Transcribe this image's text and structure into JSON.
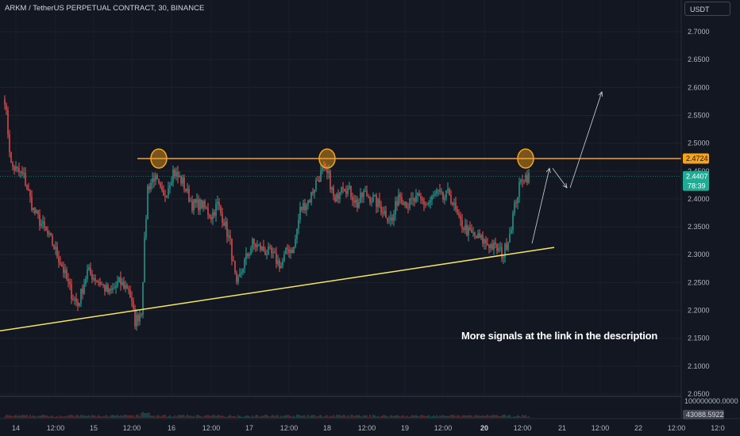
{
  "header": {
    "title": "ARKM / TetherUS PERPETUAL CONTRACT, 30, BINANCE",
    "currency": "USDT"
  },
  "annotation": "More signals at the link in the description",
  "colors": {
    "background": "#131722",
    "up": "#26a69a",
    "down": "#ef5350",
    "resistance": "#f7a21b",
    "support": "#f5e663",
    "current_price_tag": "#22ab94"
  },
  "chart_data": {
    "type": "candlestick",
    "symbol": "ARKM / TetherUS PERPETUAL CONTRACT",
    "interval": "30",
    "exchange": "BINANCE",
    "x_tick_labels": [
      "14",
      "12:00",
      "15",
      "12:00",
      "16",
      "12:00",
      "17",
      "12:00",
      "18",
      "12:00",
      "19",
      "12:00",
      "20",
      "12:00",
      "21",
      "12:00",
      "22",
      "12:00",
      "12:0"
    ],
    "y_tick_labels": [
      "2.7000",
      "2.6500",
      "2.6000",
      "2.5500",
      "2.5000",
      "2.4500",
      "2.4000",
      "2.3500",
      "2.3000",
      "2.2500",
      "2.2000",
      "2.1500",
      "2.1000",
      "2.0500"
    ],
    "ylim": [
      2.05,
      2.72
    ],
    "resistance_level": "2.4724",
    "current_price": "2.4407",
    "countdown": "78:39",
    "volume_axis_label": "100000000.0000",
    "volume_last": "43088.5922",
    "bars_per_day": 48,
    "first_bar_time": "2023-09-13T19:00",
    "close_path": [
      [
        0,
        2.58
      ],
      [
        4,
        2.46
      ],
      [
        12,
        2.44
      ],
      [
        18,
        2.38
      ],
      [
        24,
        2.35
      ],
      [
        30,
        2.32
      ],
      [
        36,
        2.28
      ],
      [
        42,
        2.23
      ],
      [
        46,
        2.21
      ],
      [
        52,
        2.27
      ],
      [
        60,
        2.25
      ],
      [
        66,
        2.23
      ],
      [
        72,
        2.25
      ],
      [
        78,
        2.24
      ],
      [
        82,
        2.18
      ],
      [
        86,
        2.2
      ],
      [
        88,
        2.32
      ],
      [
        90,
        2.42
      ],
      [
        94,
        2.44
      ],
      [
        100,
        2.4
      ],
      [
        106,
        2.45
      ],
      [
        112,
        2.43
      ],
      [
        118,
        2.39
      ],
      [
        124,
        2.39
      ],
      [
        130,
        2.37
      ],
      [
        134,
        2.39
      ],
      [
        138,
        2.36
      ],
      [
        142,
        2.32
      ],
      [
        146,
        2.24
      ],
      [
        150,
        2.28
      ],
      [
        156,
        2.32
      ],
      [
        162,
        2.31
      ],
      [
        168,
        2.3
      ],
      [
        174,
        2.28
      ],
      [
        178,
        2.31
      ],
      [
        182,
        2.31
      ],
      [
        186,
        2.38
      ],
      [
        192,
        2.4
      ],
      [
        196,
        2.43
      ],
      [
        200,
        2.45
      ],
      [
        204,
        2.44
      ],
      [
        208,
        2.39
      ],
      [
        212,
        2.43
      ],
      [
        218,
        2.41
      ],
      [
        222,
        2.39
      ],
      [
        226,
        2.41
      ],
      [
        232,
        2.4
      ],
      [
        238,
        2.38
      ],
      [
        244,
        2.36
      ],
      [
        248,
        2.41
      ],
      [
        254,
        2.39
      ],
      [
        260,
        2.4
      ],
      [
        266,
        2.39
      ],
      [
        272,
        2.41
      ],
      [
        276,
        2.4
      ],
      [
        280,
        2.41
      ],
      [
        286,
        2.36
      ],
      [
        292,
        2.34
      ],
      [
        298,
        2.33
      ],
      [
        304,
        2.32
      ],
      [
        310,
        2.31
      ],
      [
        314,
        2.3
      ],
      [
        318,
        2.34
      ],
      [
        322,
        2.4
      ],
      [
        326,
        2.44
      ],
      [
        330,
        2.44
      ]
    ],
    "annotations": [
      {
        "type": "horizontal_line",
        "label": "resistance",
        "price": 2.4724
      },
      {
        "type": "trend_line",
        "label": "support",
        "from": [
          -6,
          2.162
        ],
        "to": [
          346,
          2.313
        ]
      },
      {
        "type": "circle",
        "bar": 97,
        "price": 2.4724
      },
      {
        "type": "circle",
        "bar": 203,
        "price": 2.4724
      },
      {
        "type": "circle",
        "bar": 328,
        "price": 2.4724
      },
      {
        "type": "arrow",
        "from": [
          332,
          2.32
        ],
        "to": [
          343,
          2.455
        ]
      },
      {
        "type": "arrow",
        "from": [
          345,
          2.455
        ],
        "to": [
          354,
          2.42
        ]
      },
      {
        "type": "arrow",
        "from": [
          356,
          2.42
        ],
        "to": [
          376,
          2.592
        ]
      }
    ]
  }
}
